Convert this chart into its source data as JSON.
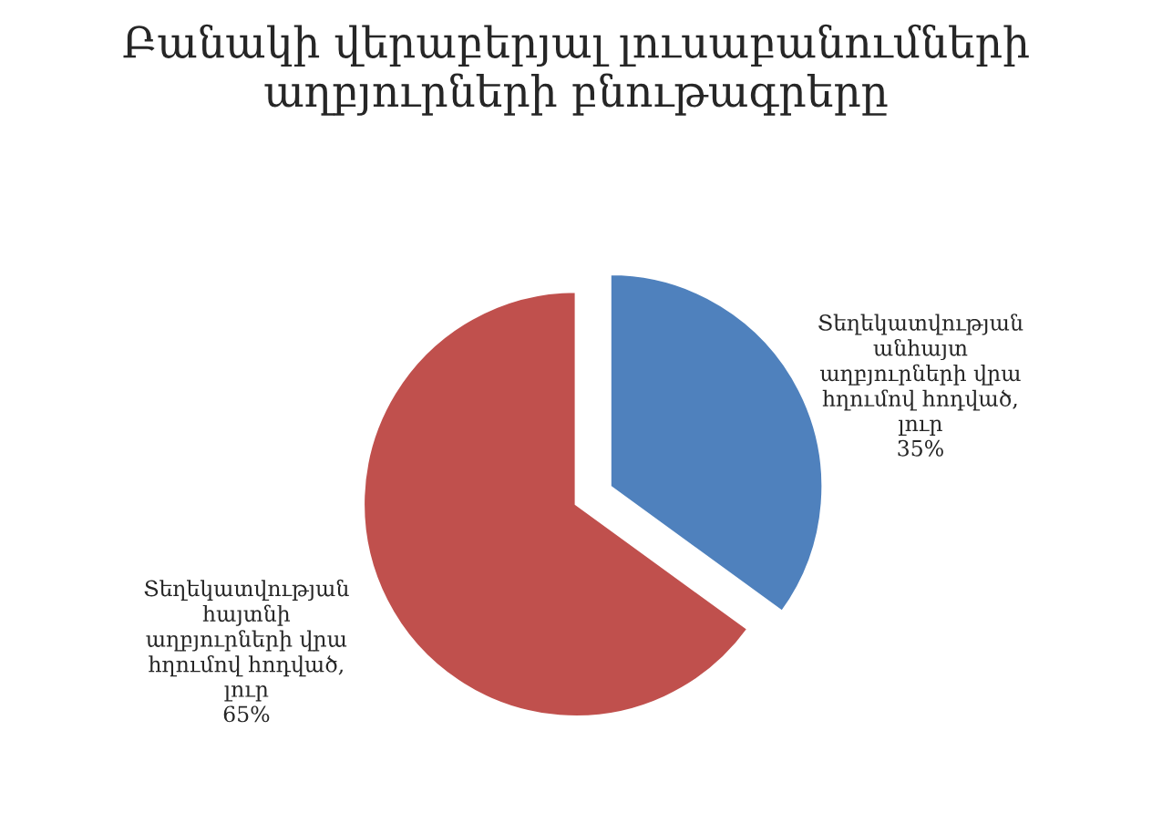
{
  "chart_data": {
    "type": "pie",
    "title": "Բանակի վերաբերյալ լուսաբանումների\nաղբյուրների բնութագրերը",
    "categories": [
      "Տեղեկատվության\nանհայտ\nաղբյուրների վրա\nհղումով հոդված,\nլուր",
      "Տեղեկատվության\nհայտնի\nաղբյուրների վրա\nհղումով հոդված,\nլուր"
    ],
    "values": [
      35,
      65
    ],
    "value_labels": [
      "35%",
      "65%"
    ],
    "colors": [
      "#4f81bd",
      "#c0504d"
    ],
    "legend": false
  }
}
